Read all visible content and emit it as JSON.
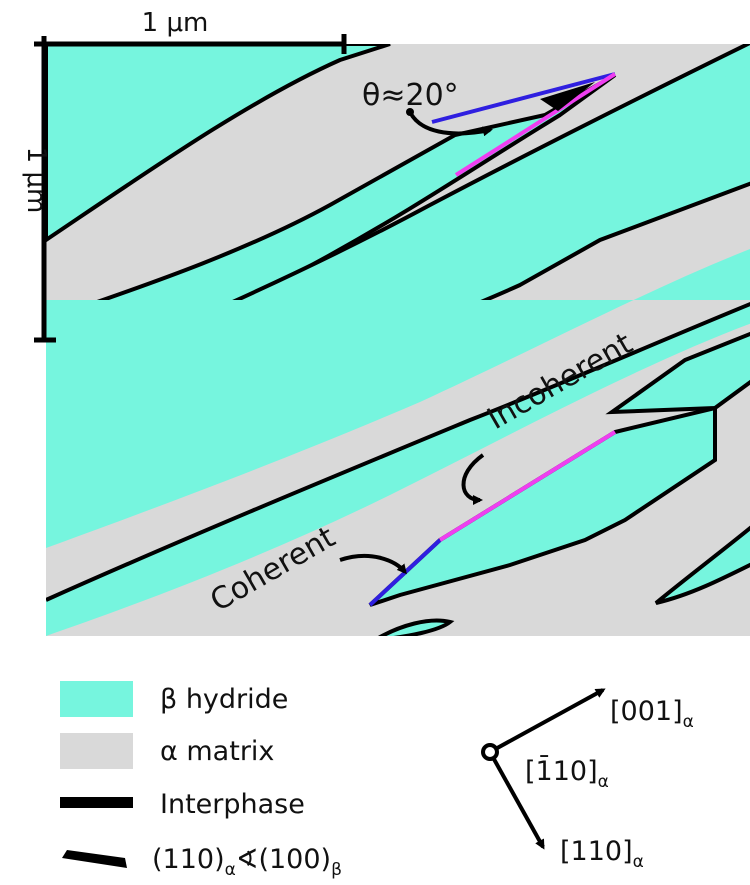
{
  "scale_bar": {
    "horizontal_label": "1 μm",
    "vertical_label": "1 μm"
  },
  "annotations": {
    "angle_label": "θ≈20°",
    "incoherent_label": "Incoherent",
    "coherent_label": "Coherent"
  },
  "legend": {
    "items": [
      {
        "key": "beta",
        "label": "β hydride",
        "color": "#76f5de"
      },
      {
        "key": "alpha",
        "label": "α matrix",
        "color": "#d9d9d9"
      },
      {
        "key": "interphase",
        "label": "Interphase",
        "color": "#000000"
      },
      {
        "key": "angle",
        "label_main_1": "(110)",
        "label_sub_1": "α",
        "label_main_2": "∢(100)",
        "label_sub_2": "β"
      }
    ]
  },
  "orientation": {
    "axis_up": "[001]",
    "axis_center": "[1̄10]",
    "axis_down": "[110]",
    "subscript": "α"
  },
  "colors": {
    "beta_hydride": "#76f5de",
    "alpha_matrix": "#d9d9d9",
    "interphase": "#000000",
    "coherent_interface": "#2f1fe0",
    "incoherent_interface": "#ef3ef0"
  }
}
